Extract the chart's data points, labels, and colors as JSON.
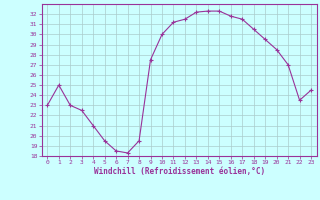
{
  "hours": [
    0,
    1,
    2,
    3,
    4,
    5,
    6,
    7,
    8,
    9,
    10,
    11,
    12,
    13,
    14,
    15,
    16,
    17,
    18,
    19,
    20,
    21,
    22,
    23
  ],
  "windchill": [
    23.0,
    25.0,
    23.0,
    22.5,
    21.0,
    19.5,
    18.5,
    18.3,
    19.5,
    27.5,
    30.0,
    31.2,
    31.5,
    32.2,
    32.3,
    32.3,
    31.8,
    31.5,
    30.5,
    29.5,
    28.5,
    27.0,
    23.5,
    24.5
  ],
  "line_color": "#993399",
  "marker": "+",
  "bg_color": "#ccffff",
  "grid_color": "#aacccc",
  "axis_color": "#993399",
  "tick_color": "#993399",
  "xlabel": "Windchill (Refroidissement éolien,°C)",
  "ylim": [
    18,
    33
  ],
  "xlim": [
    -0.5,
    23.5
  ],
  "yticks": [
    18,
    19,
    20,
    21,
    22,
    23,
    24,
    25,
    26,
    27,
    28,
    29,
    30,
    31,
    32
  ],
  "xticks": [
    0,
    1,
    2,
    3,
    4,
    5,
    6,
    7,
    8,
    9,
    10,
    11,
    12,
    13,
    14,
    15,
    16,
    17,
    18,
    19,
    20,
    21,
    22,
    23
  ]
}
